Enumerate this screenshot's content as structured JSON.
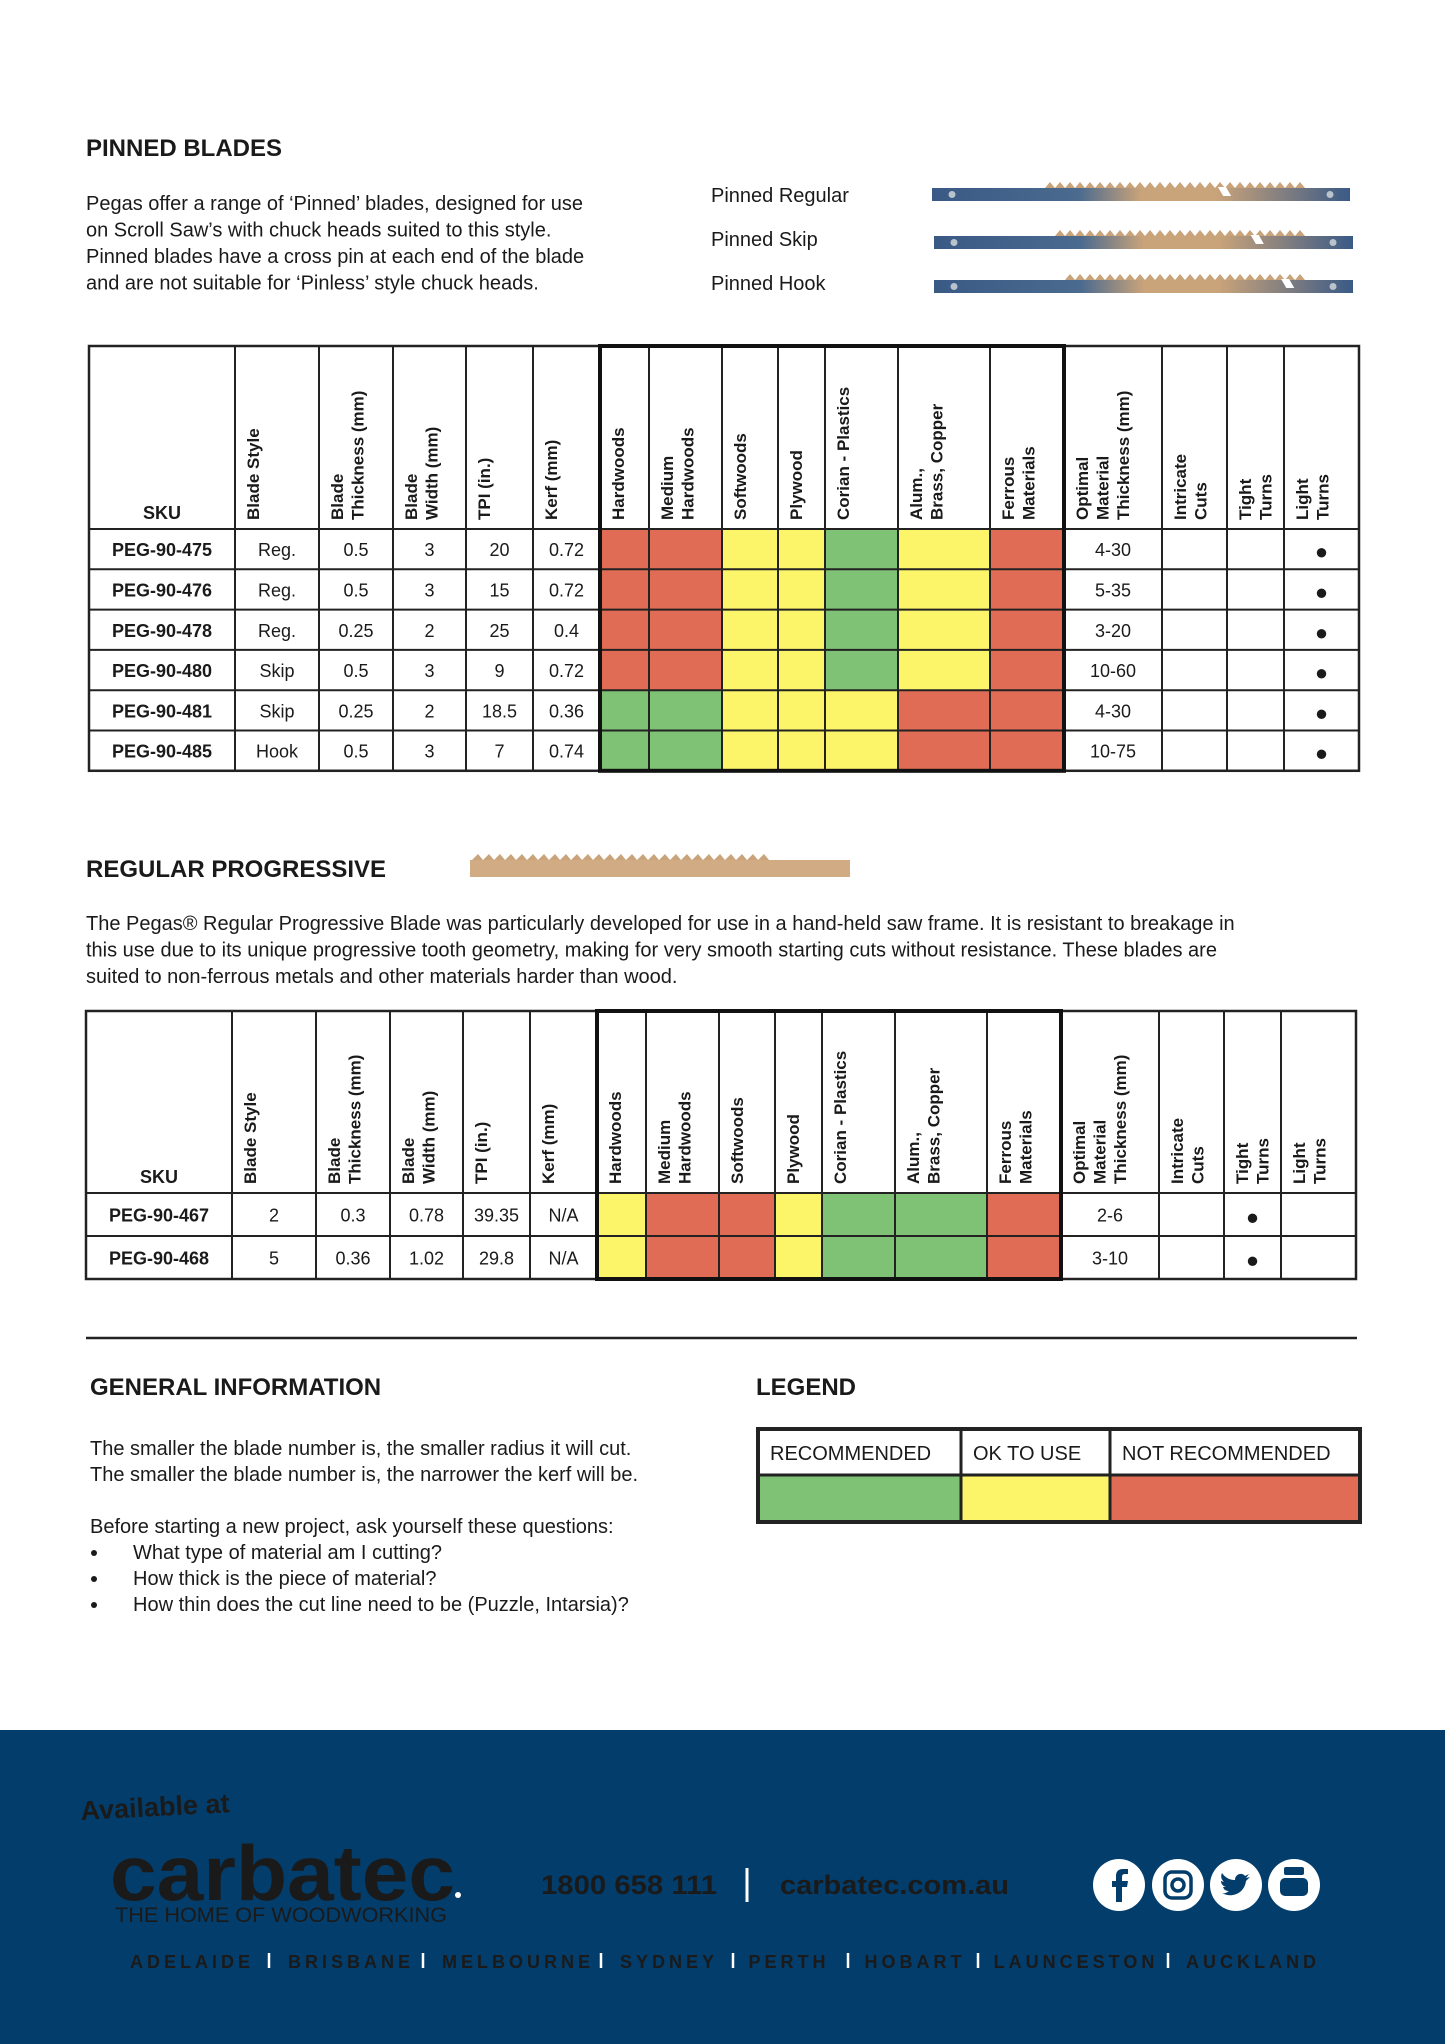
{
  "pinned": {
    "title": "PINNED BLADES",
    "paragraph": [
      "Pegas offer a range of ‘Pinned’ blades, designed for use",
      "on Scroll Saw’s with chuck heads suited to this style.",
      "Pinned blades have a cross pin at each end of the blade",
      "and are not suitable for ‘Pinless’ style chuck heads."
    ],
    "blades": [
      "Pinned Regular",
      "Pinned Skip",
      "Pinned Hook"
    ],
    "table": {
      "headers": [
        [
          "SKU"
        ],
        [
          "Blade Style"
        ],
        [
          "Blade",
          "Thickness (mm)"
        ],
        [
          "Blade",
          "Width (mm)"
        ],
        [
          "TPI (in.)"
        ],
        [
          "Kerf (mm)"
        ],
        [
          "Hardwoods"
        ],
        [
          "Medium",
          "Hardwoods"
        ],
        [
          "Softwoods"
        ],
        [
          "Plywood"
        ],
        [
          "Corian  - Plastics"
        ],
        [
          "Alum.,",
          "Brass, Copper"
        ],
        [
          "Ferrous",
          "Materials"
        ],
        [
          "Optimal",
          "Material",
          "Thickness (mm)"
        ],
        [
          "Intricate",
          "Cuts"
        ],
        [
          "Tight",
          "Turns"
        ],
        [
          "Light",
          "Turns"
        ]
      ],
      "rows": [
        {
          "cells": [
            "PEG-90-475",
            "Reg.",
            "0.5",
            "3",
            "20",
            "0.72"
          ],
          "colors": [
            "#e06c55",
            "#e06c55",
            "#fdf569",
            "#fdf569",
            "#80c275",
            "#fdf569",
            "#e06c55"
          ],
          "thickness": "4-30",
          "turns": [
            null,
            null,
            "●"
          ]
        },
        {
          "cells": [
            "PEG-90-476",
            "Reg.",
            "0.5",
            "3",
            "15",
            "0.72"
          ],
          "colors": [
            "#e06c55",
            "#e06c55",
            "#fdf569",
            "#fdf569",
            "#80c275",
            "#fdf569",
            "#e06c55"
          ],
          "thickness": "5-35",
          "turns": [
            null,
            null,
            "●"
          ]
        },
        {
          "cells": [
            "PEG-90-478",
            "Reg.",
            "0.25",
            "2",
            "25",
            "0.4"
          ],
          "colors": [
            "#e06c55",
            "#e06c55",
            "#fdf569",
            "#fdf569",
            "#80c275",
            "#fdf569",
            "#e06c55"
          ],
          "thickness": "3-20",
          "turns": [
            null,
            null,
            "●"
          ]
        },
        {
          "cells": [
            "PEG-90-480",
            "Skip",
            "0.5",
            "3",
            "9",
            "0.72"
          ],
          "colors": [
            "#e06c55",
            "#e06c55",
            "#fdf569",
            "#fdf569",
            "#80c275",
            "#fdf569",
            "#e06c55"
          ],
          "thickness": "10-60",
          "turns": [
            null,
            null,
            "●"
          ]
        },
        {
          "cells": [
            "PEG-90-481",
            "Skip",
            "0.25",
            "2",
            "18.5",
            "0.36"
          ],
          "colors": [
            "#80c275",
            "#80c275",
            "#fdf569",
            "#fdf569",
            "#fdf569",
            "#e06c55",
            "#e06c55"
          ],
          "thickness": "4-30",
          "turns": [
            null,
            null,
            "●"
          ]
        },
        {
          "cells": [
            "PEG-90-485",
            "Hook",
            "0.5",
            "3",
            "7",
            "0.74"
          ],
          "colors": [
            "#80c275",
            "#80c275",
            "#fdf569",
            "#fdf569",
            "#fdf569",
            "#e06c55",
            "#e06c55"
          ],
          "thickness": "10-75",
          "turns": [
            null,
            null,
            "●"
          ]
        }
      ]
    }
  },
  "progressive": {
    "title": "REGULAR PROGRESSIVE",
    "paragraph": [
      "The Pegas® Regular Progressive Blade was particularly developed for use in a hand-held saw frame. It is resistant to breakage in",
      "this use due to its unique progressive tooth geometry, making for very smooth starting cuts without resistance. These blades are",
      "suited to non-ferrous metals and other materials harder than wood."
    ],
    "table": {
      "headers": [
        [
          "SKU"
        ],
        [
          "Blade Style"
        ],
        [
          "Blade",
          "Thickness (mm)"
        ],
        [
          "Blade",
          "Width (mm)"
        ],
        [
          "TPI (in.)"
        ],
        [
          "Kerf (mm)"
        ],
        [
          "Hardwoods"
        ],
        [
          "Medium",
          "Hardwoods"
        ],
        [
          "Softwoods"
        ],
        [
          "Plywood"
        ],
        [
          "Corian  - Plastics"
        ],
        [
          "Alum.,",
          "Brass, Copper"
        ],
        [
          "Ferrous",
          "Materials"
        ],
        [
          "Optimal",
          "Material",
          "Thickness (mm)"
        ],
        [
          "Intricate",
          "Cuts"
        ],
        [
          "Tight",
          "Turns"
        ],
        [
          "Light",
          "Turns"
        ]
      ],
      "rows": [
        {
          "cells": [
            "PEG-90-467",
            "2",
            "0.3",
            "0.78",
            "39.35",
            "N/A"
          ],
          "colors": [
            "#fdf569",
            "#e06c55",
            "#e06c55",
            "#fdf569",
            "#80c275",
            "#80c275",
            "#e06c55"
          ],
          "thickness": "2-6",
          "turns": [
            null,
            "●",
            null
          ]
        },
        {
          "cells": [
            "PEG-90-468",
            "5",
            "0.36",
            "1.02",
            "29.8",
            "N/A"
          ],
          "colors": [
            "#fdf569",
            "#e06c55",
            "#e06c55",
            "#fdf569",
            "#80c275",
            "#80c275",
            "#e06c55"
          ],
          "thickness": "3-10",
          "turns": [
            null,
            "●",
            null
          ]
        }
      ]
    }
  },
  "general": {
    "title": "GENERAL INFORMATION",
    "lines": [
      "The smaller the blade number is, the smaller radius it will cut.",
      "The smaller the blade number is, the narrower the kerf will be."
    ],
    "intro": "Before starting a new project, ask yourself these questions:",
    "bullets": [
      "What type of material am I cutting?",
      "How thick is the piece of material?",
      "How thin does the cut line need to be (Puzzle, Intarsia)?"
    ]
  },
  "legend": {
    "title": "LEGEND",
    "items": [
      {
        "label": "RECOMMENDED",
        "color": "#80c275"
      },
      {
        "label": "OK TO USE",
        "color": "#fdf569"
      },
      {
        "label": "NOT RECOMMENDED",
        "color": "#e06c55"
      }
    ]
  },
  "footer": {
    "available": "Available at",
    "brand": "carbatec",
    "tagline": "THE HOME OF WOODWORKING",
    "phone": "1800 658 111",
    "website": "carbatec.com.au",
    "cities": [
      "ADELAIDE",
      "BRISBANE",
      "MELBOURNE",
      "SYDNEY",
      "PERTH",
      "HOBART",
      "LAUNCESTON",
      "AUCKLAND"
    ]
  }
}
